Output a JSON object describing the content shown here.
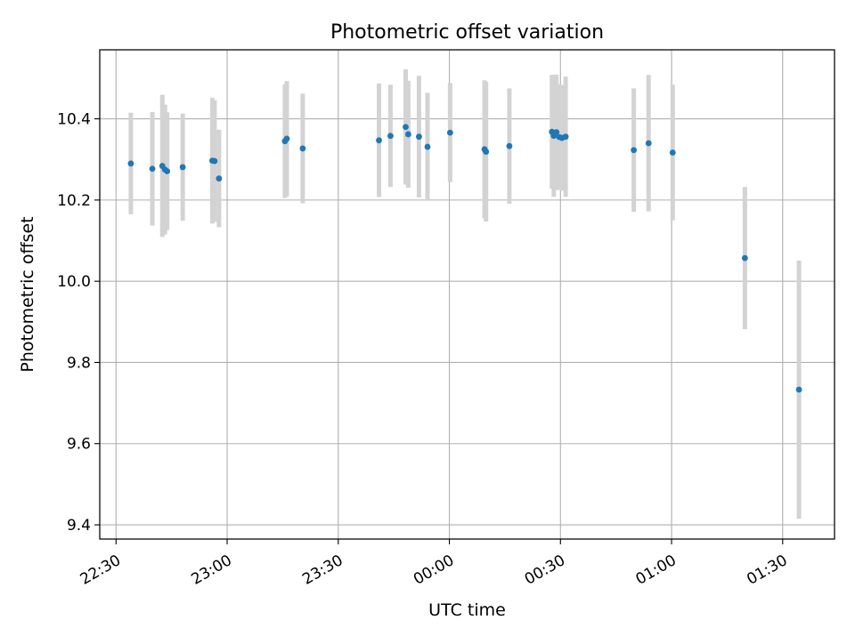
{
  "chart_data": {
    "type": "scatter",
    "title": "Photometric offset variation",
    "xlabel": "UTC time",
    "ylabel": "Photometric offset",
    "xlim": [
      -4.4,
      194.0
    ],
    "ylim": [
      9.365,
      10.57
    ],
    "x_unit": "minutes after 22:30 UTC",
    "x_ticks": [
      {
        "value": 0,
        "label": "22:30"
      },
      {
        "value": 30,
        "label": "23:00"
      },
      {
        "value": 60,
        "label": "23:30"
      },
      {
        "value": 90,
        "label": "00:00"
      },
      {
        "value": 120,
        "label": "00:30"
      },
      {
        "value": 150,
        "label": "01:00"
      },
      {
        "value": 180,
        "label": "01:30"
      }
    ],
    "y_ticks": [
      {
        "value": 9.4,
        "label": "9.4"
      },
      {
        "value": 9.6,
        "label": "9.6"
      },
      {
        "value": 9.8,
        "label": "9.8"
      },
      {
        "value": 10.0,
        "label": "10.0"
      },
      {
        "value": 10.2,
        "label": "10.2"
      },
      {
        "value": 10.4,
        "label": "10.4"
      }
    ],
    "grid": true,
    "point_color": "#1f77b4",
    "errorbar_color": "#d3d3d3",
    "series": [
      {
        "name": "offset",
        "points": [
          {
            "x": 4.0,
            "y": 10.29,
            "err": 0.125
          },
          {
            "x": 9.8,
            "y": 10.277,
            "err": 0.14
          },
          {
            "x": 12.5,
            "y": 10.284,
            "err": 0.175
          },
          {
            "x": 13.2,
            "y": 10.275,
            "err": 0.16
          },
          {
            "x": 13.8,
            "y": 10.271,
            "err": 0.145
          },
          {
            "x": 18.0,
            "y": 10.281,
            "err": 0.132
          },
          {
            "x": 26.0,
            "y": 10.297,
            "err": 0.155
          },
          {
            "x": 26.6,
            "y": 10.296,
            "err": 0.15
          },
          {
            "x": 27.8,
            "y": 10.253,
            "err": 0.12
          },
          {
            "x": 45.6,
            "y": 10.345,
            "err": 0.14
          },
          {
            "x": 46.1,
            "y": 10.351,
            "err": 0.142
          },
          {
            "x": 50.4,
            "y": 10.327,
            "err": 0.135
          },
          {
            "x": 71.0,
            "y": 10.347,
            "err": 0.14
          },
          {
            "x": 74.1,
            "y": 10.358,
            "err": 0.126
          },
          {
            "x": 78.2,
            "y": 10.38,
            "err": 0.142
          },
          {
            "x": 78.9,
            "y": 10.362,
            "err": 0.132
          },
          {
            "x": 81.8,
            "y": 10.356,
            "err": 0.15
          },
          {
            "x": 84.1,
            "y": 10.331,
            "err": 0.133
          },
          {
            "x": 90.2,
            "y": 10.366,
            "err": 0.122
          },
          {
            "x": 99.5,
            "y": 10.325,
            "err": 0.17
          },
          {
            "x": 99.9,
            "y": 10.319,
            "err": 0.172
          },
          {
            "x": 106.2,
            "y": 10.333,
            "err": 0.142
          },
          {
            "x": 117.7,
            "y": 10.368,
            "err": 0.14
          },
          {
            "x": 118.2,
            "y": 10.358,
            "err": 0.15
          },
          {
            "x": 118.9,
            "y": 10.367,
            "err": 0.142
          },
          {
            "x": 119.7,
            "y": 10.355,
            "err": 0.13
          },
          {
            "x": 120.4,
            "y": 10.353,
            "err": 0.13
          },
          {
            "x": 121.4,
            "y": 10.356,
            "err": 0.148
          },
          {
            "x": 139.8,
            "y": 10.323,
            "err": 0.152
          },
          {
            "x": 143.8,
            "y": 10.34,
            "err": 0.168
          },
          {
            "x": 150.3,
            "y": 10.317,
            "err": 0.167
          },
          {
            "x": 169.8,
            "y": 10.057,
            "err": 0.175
          },
          {
            "x": 184.4,
            "y": 9.733,
            "err": 0.318
          }
        ]
      }
    ]
  }
}
